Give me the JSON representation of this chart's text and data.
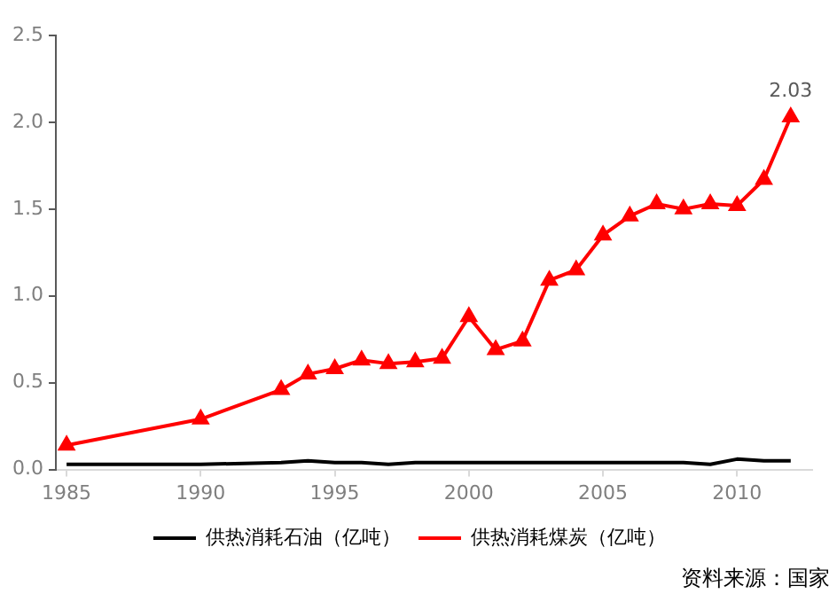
{
  "chart_data": {
    "type": "line",
    "x": [
      1985,
      1990,
      1993,
      1994,
      1995,
      1996,
      1997,
      1998,
      1999,
      2000,
      2001,
      2002,
      2003,
      2004,
      2005,
      2006,
      2007,
      2008,
      2009,
      2010,
      2011,
      2012
    ],
    "series": [
      {
        "name": "供热消耗石油（亿吨）",
        "color": "#000000",
        "marker": "none",
        "values": [
          0.03,
          0.03,
          0.04,
          0.05,
          0.04,
          0.04,
          0.03,
          0.04,
          0.04,
          0.04,
          0.04,
          0.04,
          0.04,
          0.04,
          0.04,
          0.04,
          0.04,
          0.04,
          0.03,
          0.06,
          0.05,
          0.05
        ]
      },
      {
        "name": "供热消耗煤炭（亿吨）",
        "color": "#ff0000",
        "marker": "triangle",
        "values": [
          0.14,
          0.29,
          0.46,
          0.55,
          0.58,
          0.63,
          0.61,
          0.62,
          0.64,
          0.88,
          0.69,
          0.74,
          1.09,
          1.15,
          1.35,
          1.46,
          1.53,
          1.5,
          1.53,
          1.52,
          1.67,
          2.03
        ],
        "value_labels": [
          null,
          null,
          null,
          null,
          null,
          null,
          null,
          null,
          null,
          null,
          null,
          null,
          null,
          null,
          null,
          null,
          null,
          null,
          null,
          null,
          null,
          "2.03"
        ]
      }
    ],
    "xlim": [
      1984.6,
      2012.8
    ],
    "xticks": [
      1985,
      1990,
      1995,
      2000,
      2005,
      2010
    ],
    "ylim": [
      0,
      2.5
    ],
    "yticks": [
      {
        "value": 0,
        "label": "0.0"
      },
      {
        "value": 0.5,
        "label": "0.5"
      },
      {
        "value": 1,
        "label": "1.0"
      },
      {
        "value": 1.5,
        "label": "1.5"
      },
      {
        "value": 2,
        "label": "2.0"
      },
      {
        "value": 2.5,
        "label": "2.5"
      }
    ],
    "grid": false,
    "legend": "bottom",
    "annotations": [
      "资料来源：国家"
    ]
  }
}
